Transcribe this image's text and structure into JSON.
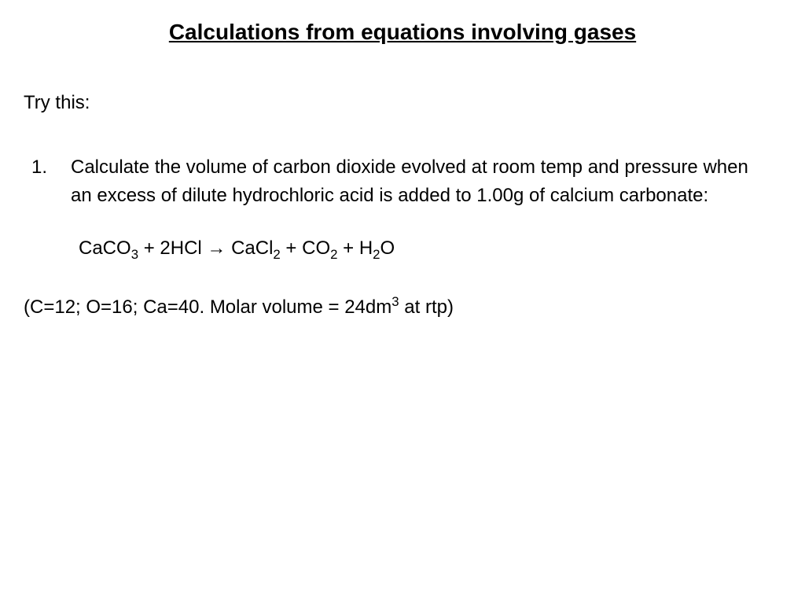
{
  "document": {
    "title": "Calculations from equations involving gases",
    "subtitle": "Try this:",
    "question_number": "1.",
    "question_text": "Calculate the volume of carbon dioxide evolved at room temp and pressure when an excess of dilute hydrochloric acid is added to 1.00g of calcium carbonate:",
    "equation_parts": {
      "reactant1_base": "CaCO",
      "reactant1_sub": "3",
      "plus1": " + 2HCl  ",
      "arrow": "→",
      "spacer": "   ",
      "product1_base": "CaCl",
      "product1_sub": "2",
      "plus2": " + CO",
      "product2_sub": "2",
      "plus3": " + H",
      "product3_sub": "2",
      "product3_end": "O"
    },
    "info_prefix": "(C=12; O=16; Ca=40. Molar volume = 24dm",
    "info_sup": "3",
    "info_suffix": " at rtp)"
  },
  "styling": {
    "background_color": "#ffffff",
    "text_color": "#000000",
    "title_fontsize": 28,
    "body_fontsize": 24,
    "font_family": "Arial"
  }
}
